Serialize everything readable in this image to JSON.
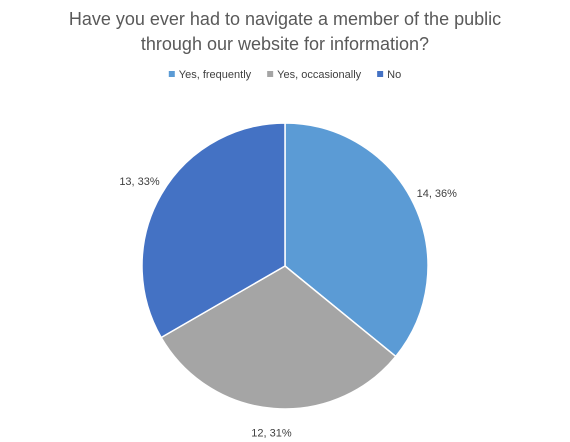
{
  "chart_data": {
    "type": "pie",
    "title": [
      "Have you ever had to navigate a member of the public",
      "through our website for information?"
    ],
    "categories": [
      "Yes, frequently",
      "Yes, occasionally",
      "No"
    ],
    "values": [
      14,
      12,
      13
    ],
    "value_labels": [
      "14, 36%",
      "12, 31%",
      "13, 33%"
    ],
    "colors": [
      "#5b9bd5",
      "#a5a5a5",
      "#4472c4"
    ],
    "legend": "top"
  }
}
